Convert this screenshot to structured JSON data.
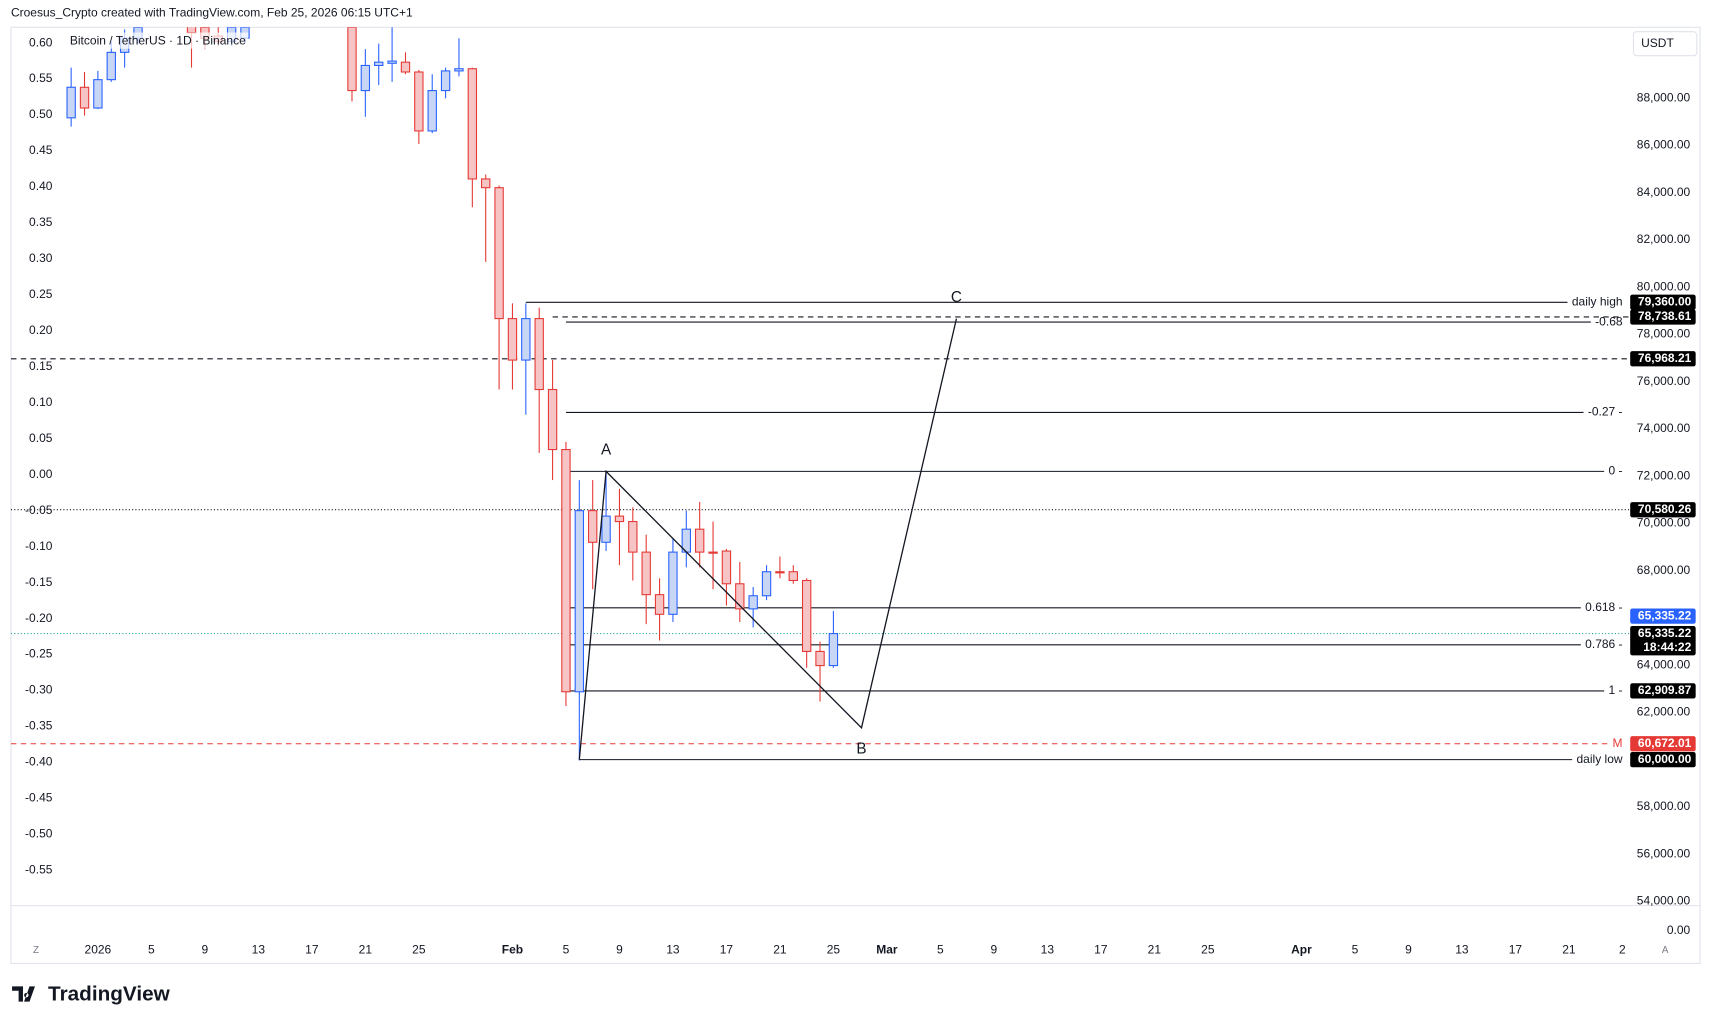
{
  "chart_data": {
    "type": "candlestick",
    "title": "Croesus_Crypto created with TradingView.com, Feb 25, 2026 06:15 UTC+1",
    "symbol": "Bitcoin / TetherUS · 1D · Binance",
    "currency": "USDT",
    "right_axis_footer": "0.00",
    "controls": [
      "Z",
      "A"
    ],
    "brand": "TradingView",
    "up_color": "#2962ff",
    "down_color": "#e53935",
    "xlim": [
      -6.5,
      114.5
    ],
    "ylim": [
      53820,
      91002
    ],
    "y2lim": [
      -0.599,
      0.622
    ],
    "xticks": [
      {
        "value": 0,
        "label": "2026"
      },
      {
        "value": 4,
        "label": "5"
      },
      {
        "value": 8,
        "label": "9"
      },
      {
        "value": 12,
        "label": "13"
      },
      {
        "value": 16,
        "label": "17"
      },
      {
        "value": 20,
        "label": "21"
      },
      {
        "value": 24,
        "label": "25"
      },
      {
        "value": 31,
        "label": "Feb"
      },
      {
        "value": 35,
        "label": "5"
      },
      {
        "value": 39,
        "label": "9"
      },
      {
        "value": 43,
        "label": "13"
      },
      {
        "value": 47,
        "label": "17"
      },
      {
        "value": 51,
        "label": "21"
      },
      {
        "value": 55,
        "label": "25"
      },
      {
        "value": 59,
        "label": "Mar"
      },
      {
        "value": 63,
        "label": "5"
      },
      {
        "value": 67,
        "label": "9"
      },
      {
        "value": 71,
        "label": "13"
      },
      {
        "value": 75,
        "label": "17"
      },
      {
        "value": 79,
        "label": "21"
      },
      {
        "value": 83,
        "label": "25"
      },
      {
        "value": 90,
        "label": "Apr"
      },
      {
        "value": 94,
        "label": "5"
      },
      {
        "value": 98,
        "label": "9"
      },
      {
        "value": 102,
        "label": "13"
      },
      {
        "value": 106,
        "label": "17"
      },
      {
        "value": 110,
        "label": "21"
      },
      {
        "value": 114,
        "label": "2"
      }
    ],
    "yticks": [
      {
        "value": 88000,
        "label": "88,000.00"
      },
      {
        "value": 86000,
        "label": "86,000.00"
      },
      {
        "value": 84000,
        "label": "84,000.00"
      },
      {
        "value": 82000,
        "label": "82,000.00"
      },
      {
        "value": 80000,
        "label": "80,000.00"
      },
      {
        "value": 78000,
        "label": "78,000.00"
      },
      {
        "value": 76000,
        "label": "76,000.00"
      },
      {
        "value": 74000,
        "label": "74,000.00"
      },
      {
        "value": 72000,
        "label": "72,000.00"
      },
      {
        "value": 70000,
        "label": "70,000.00"
      },
      {
        "value": 68000,
        "label": "68,000.00"
      },
      {
        "value": 66000,
        "label": "66,000.00"
      },
      {
        "value": 64000,
        "label": "64,000.00"
      },
      {
        "value": 62000,
        "label": "62,000.00"
      },
      {
        "value": 60000,
        "label": "60,000.00"
      },
      {
        "value": 58000,
        "label": "58,000.00"
      },
      {
        "value": 56000,
        "label": "56,000.00"
      },
      {
        "value": 54000,
        "label": "54,000.00"
      }
    ],
    "y2ticks": [
      {
        "value": 0.6,
        "label": "0.60"
      },
      0.55,
      {
        "value": 0.5,
        "label": "0.50"
      },
      0.45,
      {
        "value": 0.4,
        "label": "0.40"
      },
      0.35,
      {
        "value": 0.3,
        "label": "0.30"
      },
      0.25,
      {
        "value": 0.2,
        "label": "0.20"
      },
      0.15,
      {
        "value": 0.1,
        "label": "0.10"
      },
      0.05,
      {
        "value": 0,
        "label": "0.00"
      },
      -0.05,
      {
        "value": -0.1,
        "label": "-0.10"
      },
      -0.15,
      {
        "value": -0.2,
        "label": "-0.20"
      },
      -0.25,
      {
        "value": -0.3,
        "label": "-0.30"
      },
      -0.35,
      {
        "value": -0.4,
        "label": "-0.40"
      },
      -0.45,
      {
        "value": -0.5,
        "label": "-0.50"
      },
      -0.55
    ],
    "candles": [
      {
        "x": -2,
        "o": 87169,
        "h": 89293,
        "l": 86799,
        "c": 88462
      },
      {
        "x": -1,
        "o": 88462,
        "h": 89109,
        "l": 87261,
        "c": 87584
      },
      {
        "x": 0,
        "o": 87584,
        "h": 89155,
        "l": 87538,
        "c": 88785
      },
      {
        "x": 1,
        "o": 88785,
        "h": 90402,
        "l": 88693,
        "c": 89940
      },
      {
        "x": 2,
        "o": 89940,
        "h": 90910,
        "l": 89293,
        "c": 90540
      },
      {
        "x": 3,
        "o": 90540,
        "h": 91233,
        "l": 90310,
        "c": 91002
      },
      {
        "x": 7,
        "o": 91233,
        "h": 91464,
        "l": 89293,
        "c": 90771
      },
      {
        "x": 8,
        "o": 91002,
        "h": 91326,
        "l": 90079,
        "c": 90540
      },
      {
        "x": 9,
        "o": 90633,
        "h": 91233,
        "l": 90217,
        "c": 90402
      },
      {
        "x": 10,
        "o": 90402,
        "h": 91326,
        "l": 90217,
        "c": 91002
      },
      {
        "x": 11,
        "o": 90540,
        "h": 91326,
        "l": 90310,
        "c": 91002
      },
      {
        "x": 19,
        "o": 91002,
        "h": 91464,
        "l": 87861,
        "c": 88323
      },
      {
        "x": 20,
        "o": 88323,
        "h": 90079,
        "l": 87215,
        "c": 89386
      },
      {
        "x": 21,
        "o": 89386,
        "h": 90310,
        "l": 88554,
        "c": 89524
      },
      {
        "x": 22,
        "o": 89478,
        "h": 91002,
        "l": 88693,
        "c": 89570
      },
      {
        "x": 23,
        "o": 89524,
        "h": 89940,
        "l": 89016,
        "c": 89109
      },
      {
        "x": 24,
        "o": 89109,
        "h": 89201,
        "l": 86060,
        "c": 86614
      },
      {
        "x": 25,
        "o": 86614,
        "h": 89016,
        "l": 86522,
        "c": 88323
      },
      {
        "x": 26,
        "o": 88323,
        "h": 89293,
        "l": 88000,
        "c": 89155
      },
      {
        "x": 27,
        "o": 89155,
        "h": 90540,
        "l": 88924,
        "c": 89247
      },
      {
        "x": 28,
        "o": 89247,
        "h": 89293,
        "l": 83381,
        "c": 84582
      },
      {
        "x": 29,
        "o": 84582,
        "h": 84767,
        "l": 81072,
        "c": 84212
      },
      {
        "x": 30,
        "o": 84212,
        "h": 84305,
        "l": 75667,
        "c": 78670
      },
      {
        "x": 31,
        "o": 78670,
        "h": 79316,
        "l": 75667,
        "c": 76914
      },
      {
        "x": 32,
        "o": 76914,
        "h": 79316,
        "l": 74605,
        "c": 78670
      },
      {
        "x": 33,
        "o": 78670,
        "h": 79132,
        "l": 72988,
        "c": 75667
      },
      {
        "x": 34,
        "o": 75667,
        "h": 76914,
        "l": 71834,
        "c": 73127
      },
      {
        "x": 35,
        "o": 73127,
        "h": 73450,
        "l": 62272,
        "c": 62873
      },
      {
        "x": 36,
        "o": 62873,
        "h": 71834,
        "l": 59963,
        "c": 70540
      },
      {
        "x": 37,
        "o": 70540,
        "h": 71834,
        "l": 67215,
        "c": 69201
      },
      {
        "x": 38,
        "o": 69201,
        "h": 72203,
        "l": 68831,
        "c": 70309
      },
      {
        "x": 39,
        "o": 70309,
        "h": 71464,
        "l": 68231,
        "c": 70078
      },
      {
        "x": 40,
        "o": 70078,
        "h": 70679,
        "l": 67584,
        "c": 68785
      },
      {
        "x": 41,
        "o": 68785,
        "h": 69524,
        "l": 65737,
        "c": 66984
      },
      {
        "x": 42,
        "o": 66984,
        "h": 67677,
        "l": 65044,
        "c": 66152
      },
      {
        "x": 43,
        "o": 66152,
        "h": 69386,
        "l": 65829,
        "c": 68785
      },
      {
        "x": 44,
        "o": 68785,
        "h": 70540,
        "l": 68138,
        "c": 69755
      },
      {
        "x": 45,
        "o": 69755,
        "h": 70910,
        "l": 68138,
        "c": 68785
      },
      {
        "x": 46,
        "o": 68785,
        "h": 70078,
        "l": 67215,
        "c": 68739
      },
      {
        "x": 47,
        "o": 68831,
        "h": 68923,
        "l": 66522,
        "c": 67445
      },
      {
        "x": 48,
        "o": 67445,
        "h": 68369,
        "l": 65829,
        "c": 66383
      },
      {
        "x": 49,
        "o": 66383,
        "h": 67307,
        "l": 65598,
        "c": 66937
      },
      {
        "x": 50,
        "o": 66937,
        "h": 68231,
        "l": 66753,
        "c": 67954
      },
      {
        "x": 51,
        "o": 67954,
        "h": 68600,
        "l": 67677,
        "c": 67908
      },
      {
        "x": 52,
        "o": 67954,
        "h": 68231,
        "l": 67445,
        "c": 67584
      },
      {
        "x": 53,
        "o": 67584,
        "h": 67677,
        "l": 63889,
        "c": 64581
      },
      {
        "x": 54,
        "o": 64581,
        "h": 64997,
        "l": 62457,
        "c": 63981
      },
      {
        "x": 55,
        "o": 63981,
        "h": 66291,
        "l": 63889,
        "c": 65335.22
      }
    ],
    "levels": [
      {
        "price": 79360,
        "price_label": "79,360.00",
        "label": "daily high",
        "from": 32,
        "style": "solid",
        "color": "#131722"
      },
      {
        "price": 78738.61,
        "price_label": "78,738.61",
        "from": 34,
        "style": "dashed",
        "color": "#131722"
      },
      {
        "price": 78522,
        "label": "-0.68",
        "from": 35,
        "style": "solid",
        "color": "#131722"
      },
      {
        "price": 76968.21,
        "price_label": "76,968.21",
        "from": -6.5,
        "style": "dashed",
        "color": "#131722"
      },
      {
        "price": 74697,
        "label": "-0.27 -",
        "from": 35,
        "style": "solid",
        "color": "#131722"
      },
      {
        "price": 72203,
        "label": "0 -",
        "from": 35,
        "style": "solid",
        "color": "#131722"
      },
      {
        "price": 70580.26,
        "price_label": "70,580.26",
        "from": -6.5,
        "style": "dotted",
        "color": "#131722"
      },
      {
        "price": 66429,
        "label": "0.618 -",
        "from": 35,
        "style": "solid",
        "color": "#131722"
      },
      {
        "price": 64859,
        "label": "0.786 -",
        "from": 35,
        "style": "solid",
        "color": "#131722"
      },
      {
        "price": 62909.87,
        "price_label": "62,909.87",
        "label": "1 -",
        "from": 35,
        "style": "solid",
        "color": "#131722"
      },
      {
        "price": 60672.01,
        "price_label": "60,672.01",
        "label": "M",
        "from": -6.5,
        "style": "dashed",
        "color": "#e53935"
      },
      {
        "price": 60000,
        "price_label": "60,000.00",
        "label": "daily low",
        "from": 36,
        "style": "solid",
        "color": "#131722"
      }
    ],
    "current": {
      "price": 65335.22,
      "price_label": "65,335.22",
      "countdown": "18:44:22",
      "color": "#26a69a",
      "tag_color": "#2962ff"
    },
    "pattern": [
      {
        "x": 36,
        "y": 60000
      },
      {
        "x": 38,
        "y": 72203,
        "label": "A"
      },
      {
        "x": 57.1,
        "y": 61348,
        "label": "B"
      },
      {
        "x": 64.2,
        "y": 78670,
        "label": "C"
      }
    ]
  }
}
